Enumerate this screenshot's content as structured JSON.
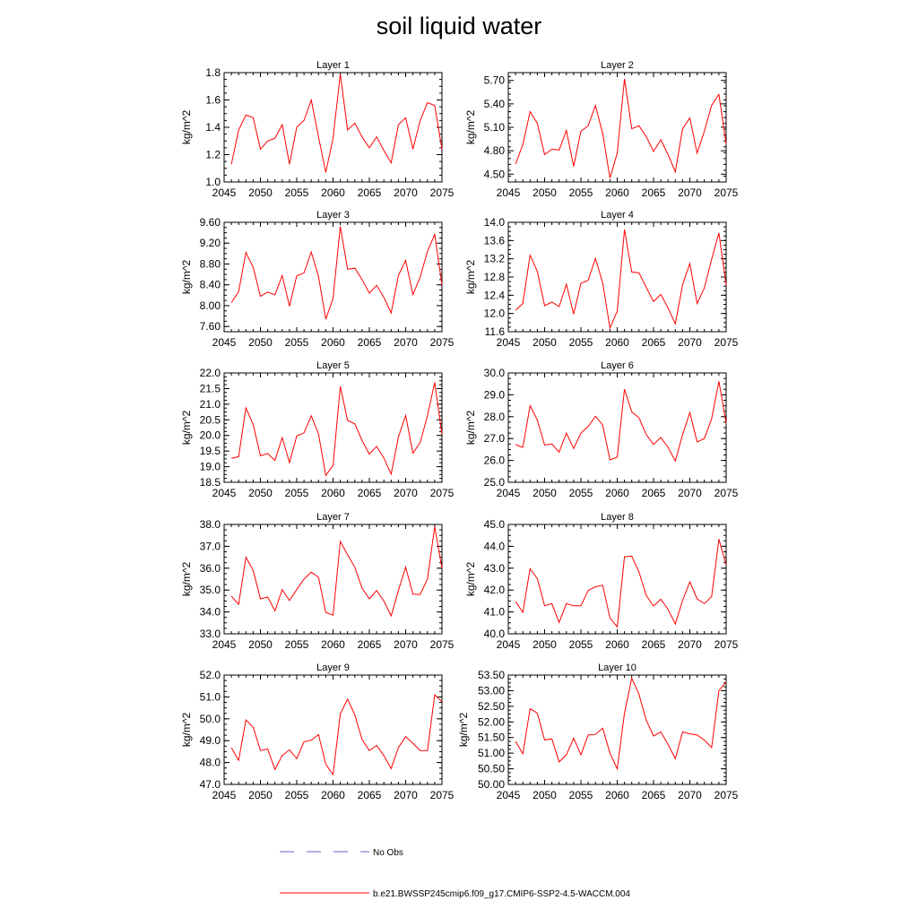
{
  "page": {
    "title": "soil liquid water"
  },
  "legend": {
    "items": [
      {
        "label": "No Obs",
        "color": "#6666cc",
        "style": "dashed"
      },
      {
        "label": "b.e21.BWSSP245cmip6.f09_g17.CMIP6-SSP2-4.5-WACCM.004",
        "color": "#ff0000",
        "style": "solid"
      }
    ]
  },
  "chart_data": [
    {
      "type": "line",
      "title": "Layer 1",
      "ylabel": "kg/m^2",
      "xlim": [
        2045,
        2075
      ],
      "xticks": [
        2045,
        2050,
        2055,
        2060,
        2065,
        2070,
        2075
      ],
      "ylim": [
        1.0,
        1.8
      ],
      "yticks": [
        "1.0",
        "1.2",
        "1.4",
        "1.6",
        "1.8"
      ],
      "series": [
        {
          "color": "#ff0000",
          "x": [
            2046,
            2047,
            2048,
            2049,
            2050,
            2051,
            2052,
            2053,
            2054,
            2055,
            2056,
            2057,
            2058,
            2059,
            2060,
            2061,
            2062,
            2063,
            2064,
            2065,
            2066,
            2067,
            2068,
            2069,
            2070,
            2071,
            2072,
            2073,
            2074,
            2075
          ],
          "y": [
            1.13,
            1.38,
            1.49,
            1.47,
            1.24,
            1.3,
            1.32,
            1.42,
            1.13,
            1.4,
            1.45,
            1.6,
            1.33,
            1.07,
            1.32,
            1.79,
            1.38,
            1.43,
            1.33,
            1.25,
            1.33,
            1.23,
            1.14,
            1.42,
            1.47,
            1.24,
            1.45,
            1.58,
            1.56,
            1.24
          ]
        }
      ]
    },
    {
      "type": "line",
      "title": "Layer 2",
      "ylabel": "kg/m^2",
      "xlim": [
        2045,
        2075
      ],
      "xticks": [
        2045,
        2050,
        2055,
        2060,
        2065,
        2070,
        2075
      ],
      "ylim": [
        4.4,
        5.8
      ],
      "yticks": [
        "4.50",
        "4.80",
        "5.10",
        "5.40",
        "5.70"
      ],
      "series": [
        {
          "color": "#ff0000",
          "x": [
            2046,
            2047,
            2048,
            2049,
            2050,
            2051,
            2052,
            2053,
            2054,
            2055,
            2056,
            2057,
            2058,
            2059,
            2060,
            2061,
            2062,
            2063,
            2064,
            2065,
            2066,
            2067,
            2068,
            2069,
            2070,
            2071,
            2072,
            2073,
            2074,
            2075
          ],
          "y": [
            4.63,
            4.88,
            5.3,
            5.15,
            4.75,
            4.82,
            4.81,
            5.06,
            4.6,
            5.05,
            5.12,
            5.38,
            5.02,
            4.45,
            4.77,
            5.72,
            5.08,
            5.12,
            4.98,
            4.79,
            4.94,
            4.75,
            4.53,
            5.08,
            5.22,
            4.77,
            5.05,
            5.38,
            5.52,
            4.88
          ]
        }
      ]
    },
    {
      "type": "line",
      "title": "Layer 3",
      "ylabel": "kg/m^2",
      "xlim": [
        2045,
        2075
      ],
      "xticks": [
        2045,
        2050,
        2055,
        2060,
        2065,
        2070,
        2075
      ],
      "ylim": [
        7.5,
        9.6
      ],
      "yticks": [
        "7.60",
        "8.00",
        "8.40",
        "8.80",
        "9.20",
        "9.60"
      ],
      "series": [
        {
          "color": "#ff0000",
          "x": [
            2046,
            2047,
            2048,
            2049,
            2050,
            2051,
            2052,
            2053,
            2054,
            2055,
            2056,
            2057,
            2058,
            2059,
            2060,
            2061,
            2062,
            2063,
            2064,
            2065,
            2066,
            2067,
            2068,
            2069,
            2070,
            2071,
            2072,
            2073,
            2074,
            2075
          ],
          "y": [
            8.06,
            8.27,
            9.02,
            8.74,
            8.18,
            8.26,
            8.21,
            8.58,
            7.99,
            8.57,
            8.63,
            9.03,
            8.56,
            7.74,
            8.14,
            9.52,
            8.7,
            8.72,
            8.5,
            8.24,
            8.39,
            8.16,
            7.86,
            8.58,
            8.87,
            8.21,
            8.55,
            9.04,
            9.37,
            8.4
          ]
        }
      ]
    },
    {
      "type": "line",
      "title": "Layer 4",
      "ylabel": "kg/m^2",
      "xlim": [
        2045,
        2075
      ],
      "xticks": [
        2045,
        2050,
        2055,
        2060,
        2065,
        2070,
        2075
      ],
      "ylim": [
        11.6,
        14.0
      ],
      "yticks": [
        "11.6",
        "12.0",
        "12.4",
        "12.8",
        "13.2",
        "13.6",
        "14.0"
      ],
      "series": [
        {
          "color": "#ff0000",
          "x": [
            2046,
            2047,
            2048,
            2049,
            2050,
            2051,
            2052,
            2053,
            2054,
            2055,
            2056,
            2057,
            2058,
            2059,
            2060,
            2061,
            2062,
            2063,
            2064,
            2065,
            2066,
            2067,
            2068,
            2069,
            2070,
            2071,
            2072,
            2073,
            2074,
            2075
          ],
          "y": [
            12.07,
            12.22,
            13.28,
            12.92,
            12.17,
            12.25,
            12.15,
            12.64,
            11.99,
            12.66,
            12.73,
            13.21,
            12.67,
            11.68,
            12.05,
            13.84,
            12.91,
            12.89,
            12.57,
            12.26,
            12.42,
            12.12,
            11.77,
            12.63,
            13.1,
            12.22,
            12.56,
            13.19,
            13.77,
            12.62
          ]
        }
      ]
    },
    {
      "type": "line",
      "title": "Layer 5",
      "ylabel": "kg/m^2",
      "xlim": [
        2045,
        2075
      ],
      "xticks": [
        2045,
        2050,
        2055,
        2060,
        2065,
        2070,
        2075
      ],
      "ylim": [
        18.5,
        22.0
      ],
      "yticks": [
        "18.5",
        "19.0",
        "19.5",
        "20.0",
        "20.5",
        "21.0",
        "21.5",
        "22.0"
      ],
      "series": [
        {
          "color": "#ff0000",
          "x": [
            2046,
            2047,
            2048,
            2049,
            2050,
            2051,
            2052,
            2053,
            2054,
            2055,
            2056,
            2057,
            2058,
            2059,
            2060,
            2061,
            2062,
            2063,
            2064,
            2065,
            2066,
            2067,
            2068,
            2069,
            2070,
            2071,
            2072,
            2073,
            2074,
            2075
          ],
          "y": [
            19.27,
            19.32,
            20.88,
            20.35,
            19.35,
            19.42,
            19.2,
            19.93,
            19.13,
            19.98,
            20.08,
            20.63,
            20.05,
            18.72,
            19.04,
            21.57,
            20.48,
            20.37,
            19.83,
            19.4,
            19.65,
            19.28,
            18.76,
            19.95,
            20.64,
            19.43,
            19.77,
            20.63,
            21.7,
            20.03
          ]
        }
      ]
    },
    {
      "type": "line",
      "title": "Layer 6",
      "ylabel": "kg/m^2",
      "xlim": [
        2045,
        2075
      ],
      "xticks": [
        2045,
        2050,
        2055,
        2060,
        2065,
        2070,
        2075
      ],
      "ylim": [
        25.0,
        30.0
      ],
      "yticks": [
        "25.0",
        "26.0",
        "27.0",
        "28.0",
        "29.0",
        "30.0"
      ],
      "series": [
        {
          "color": "#ff0000",
          "x": [
            2046,
            2047,
            2048,
            2049,
            2050,
            2051,
            2052,
            2053,
            2054,
            2055,
            2056,
            2057,
            2058,
            2059,
            2060,
            2061,
            2062,
            2063,
            2064,
            2065,
            2066,
            2067,
            2068,
            2069,
            2070,
            2071,
            2072,
            2073,
            2074,
            2075
          ],
          "y": [
            26.72,
            26.6,
            28.5,
            27.85,
            26.7,
            26.75,
            26.38,
            27.25,
            26.55,
            27.25,
            27.55,
            28.02,
            27.62,
            26.02,
            26.15,
            29.26,
            28.22,
            27.95,
            27.18,
            26.73,
            27.05,
            26.6,
            25.97,
            27.18,
            28.19,
            26.85,
            27.0,
            27.9,
            29.62,
            27.7
          ]
        }
      ]
    },
    {
      "type": "line",
      "title": "Layer 7",
      "ylabel": "kg/m^2",
      "xlim": [
        2045,
        2075
      ],
      "xticks": [
        2045,
        2050,
        2055,
        2060,
        2065,
        2070,
        2075
      ],
      "ylim": [
        33.0,
        38.0
      ],
      "yticks": [
        "33.0",
        "34.0",
        "35.0",
        "36.0",
        "37.0",
        "38.0"
      ],
      "series": [
        {
          "color": "#ff0000",
          "x": [
            2046,
            2047,
            2048,
            2049,
            2050,
            2051,
            2052,
            2053,
            2054,
            2055,
            2056,
            2057,
            2058,
            2059,
            2060,
            2061,
            2062,
            2063,
            2064,
            2065,
            2066,
            2067,
            2068,
            2069,
            2070,
            2071,
            2072,
            2073,
            2074,
            2075
          ],
          "y": [
            34.72,
            34.35,
            36.5,
            35.9,
            34.6,
            34.68,
            34.05,
            35.02,
            34.52,
            35.02,
            35.5,
            35.82,
            35.58,
            33.98,
            33.85,
            37.22,
            36.62,
            36.04,
            35.08,
            34.6,
            34.98,
            34.5,
            33.82,
            34.98,
            36.05,
            34.81,
            34.8,
            35.5,
            37.9,
            36.0
          ]
        }
      ]
    },
    {
      "type": "line",
      "title": "Layer 8",
      "ylabel": "kg/m^2",
      "xlim": [
        2045,
        2075
      ],
      "xticks": [
        2045,
        2050,
        2055,
        2060,
        2065,
        2070,
        2075
      ],
      "ylim": [
        40.0,
        45.0
      ],
      "yticks": [
        "40.0",
        "41.0",
        "42.0",
        "43.0",
        "44.0",
        "45.0"
      ],
      "series": [
        {
          "color": "#ff0000",
          "x": [
            2046,
            2047,
            2048,
            2049,
            2050,
            2051,
            2052,
            2053,
            2054,
            2055,
            2056,
            2057,
            2058,
            2059,
            2060,
            2061,
            2062,
            2063,
            2064,
            2065,
            2066,
            2067,
            2068,
            2069,
            2070,
            2071,
            2072,
            2073,
            2074,
            2075
          ],
          "y": [
            41.48,
            40.98,
            42.98,
            42.52,
            41.28,
            41.38,
            40.52,
            41.38,
            41.28,
            41.28,
            41.98,
            42.15,
            42.22,
            40.72,
            40.32,
            43.52,
            43.55,
            42.82,
            41.75,
            41.27,
            41.58,
            41.12,
            40.45,
            41.52,
            42.38,
            41.6,
            41.38,
            41.7,
            44.33,
            43.15
          ]
        }
      ]
    },
    {
      "type": "line",
      "title": "Layer 9",
      "ylabel": "kg/m^2",
      "xlim": [
        2045,
        2075
      ],
      "xticks": [
        2045,
        2050,
        2055,
        2060,
        2065,
        2070,
        2075
      ],
      "ylim": [
        47.0,
        52.0
      ],
      "yticks": [
        "47.0",
        "48.0",
        "49.0",
        "50.0",
        "51.0",
        "52.0"
      ],
      "series": [
        {
          "color": "#ff0000",
          "x": [
            2046,
            2047,
            2048,
            2049,
            2050,
            2051,
            2052,
            2053,
            2054,
            2055,
            2056,
            2057,
            2058,
            2059,
            2060,
            2061,
            2062,
            2063,
            2064,
            2065,
            2066,
            2067,
            2068,
            2069,
            2070,
            2071,
            2072,
            2073,
            2074,
            2075
          ],
          "y": [
            48.68,
            48.1,
            49.95,
            49.62,
            48.55,
            48.62,
            47.68,
            48.32,
            48.58,
            48.18,
            48.95,
            49.02,
            49.28,
            47.92,
            47.45,
            50.22,
            50.9,
            50.18,
            49.05,
            48.55,
            48.78,
            48.32,
            47.72,
            48.68,
            49.18,
            48.88,
            48.55,
            48.55,
            51.1,
            50.78
          ]
        }
      ]
    },
    {
      "type": "line",
      "title": "Layer 10",
      "ylabel": "kg/m^2",
      "xlim": [
        2045,
        2075
      ],
      "xticks": [
        2045,
        2050,
        2055,
        2060,
        2065,
        2070,
        2075
      ],
      "ylim": [
        50.0,
        53.5
      ],
      "yticks": [
        "50.00",
        "50.50",
        "51.00",
        "51.50",
        "52.00",
        "52.50",
        "53.00",
        "53.50"
      ],
      "series": [
        {
          "color": "#ff0000",
          "x": [
            2046,
            2047,
            2048,
            2049,
            2050,
            2051,
            2052,
            2053,
            2054,
            2055,
            2056,
            2057,
            2058,
            2059,
            2060,
            2061,
            2062,
            2063,
            2064,
            2065,
            2066,
            2067,
            2068,
            2069,
            2070,
            2071,
            2072,
            2073,
            2074,
            2075
          ],
          "y": [
            51.38,
            50.98,
            52.42,
            52.28,
            51.42,
            51.46,
            50.72,
            50.95,
            51.48,
            50.95,
            51.58,
            51.6,
            51.8,
            51.0,
            50.5,
            52.28,
            53.4,
            52.88,
            52.05,
            51.55,
            51.68,
            51.28,
            50.82,
            51.68,
            51.62,
            51.58,
            51.42,
            51.18,
            53.0,
            53.28
          ]
        }
      ]
    }
  ]
}
